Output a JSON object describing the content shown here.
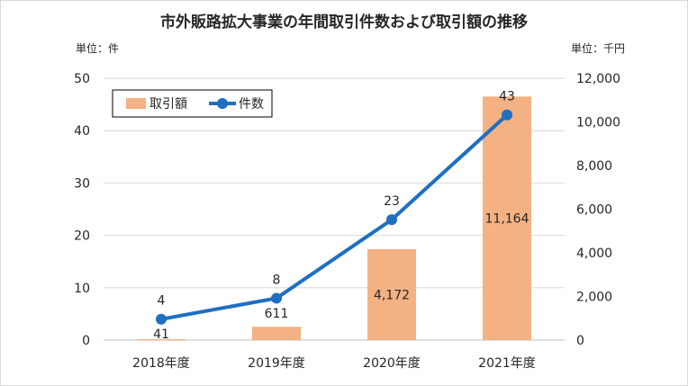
{
  "chart_data": {
    "type": "bar+line",
    "title": "市外販路拡大事業の年間取引件数および取引額の推移",
    "left_unit": "単位：件",
    "right_unit": "単位：千円",
    "categories": [
      "2018年度",
      "2019年度",
      "2020年度",
      "2021年度"
    ],
    "series": [
      {
        "name": "取引額",
        "type": "bar",
        "axis": "right",
        "values": [
          41,
          611,
          4172,
          11164
        ],
        "labels": [
          "41",
          "611",
          "4,172",
          "11,164"
        ]
      },
      {
        "name": "件数",
        "type": "line",
        "axis": "left",
        "values": [
          4,
          8,
          23,
          43
        ],
        "labels": [
          "4",
          "8",
          "23",
          "43"
        ]
      }
    ],
    "left_axis": {
      "range": [
        0,
        50
      ],
      "ticks": [
        "0",
        "10",
        "20",
        "30",
        "40",
        "50"
      ]
    },
    "right_axis": {
      "range": [
        0,
        12000
      ],
      "ticks": [
        "0",
        "2,000",
        "4,000",
        "6,000",
        "8,000",
        "10,000",
        "12,000"
      ]
    },
    "grid": true,
    "legend": "top-left",
    "colors": {
      "bar": "#F4B183",
      "line": "#1F6FC1",
      "grid": "#d9d9d9"
    }
  }
}
